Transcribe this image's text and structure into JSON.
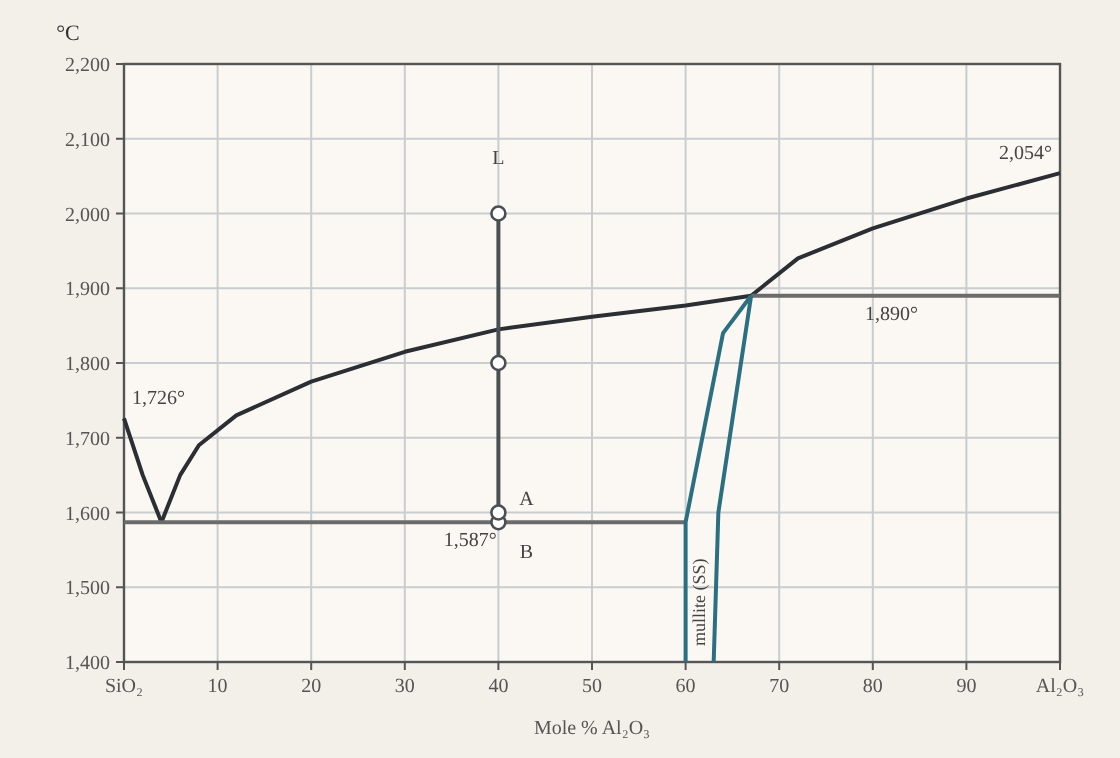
{
  "chart_data": {
    "type": "line",
    "xlabel": "Mole % Al₂O₃",
    "ylabel": "°C",
    "xlim": [
      0,
      100
    ],
    "ylim": [
      1400,
      2200
    ],
    "xticks": [
      {
        "value": 0,
        "label": "SiO₂"
      },
      10,
      20,
      30,
      40,
      50,
      60,
      70,
      80,
      90,
      {
        "value": 100,
        "label": "Al₂O₃"
      }
    ],
    "yticks": [
      {
        "value": 1400,
        "label": "1,400"
      },
      {
        "value": 1500,
        "label": "1,500"
      },
      {
        "value": 1600,
        "label": "1,600"
      },
      {
        "value": 1700,
        "label": "1,700"
      },
      {
        "value": 1800,
        "label": "1,800"
      },
      {
        "value": 1900,
        "label": "1,900"
      },
      {
        "value": 2000,
        "label": "2,000"
      },
      {
        "value": 2100,
        "label": "2,100"
      },
      {
        "value": 2200,
        "label": "2,200"
      }
    ],
    "grid": true,
    "series": [
      {
        "color": "#2b2f33",
        "x": [
          0,
          2,
          4
        ],
        "values": [
          1726,
          1650,
          1587
        ]
      },
      {
        "color": "#2b2f33",
        "x": [
          4,
          6,
          8,
          12,
          20,
          30,
          40,
          50,
          60,
          67
        ],
        "values": [
          1587,
          1650,
          1690,
          1730,
          1775,
          1815,
          1845,
          1862,
          1877,
          1890
        ]
      },
      {
        "color": "#2b2f33",
        "x": [
          67,
          72,
          80,
          90,
          100
        ],
        "values": [
          1890,
          1940,
          1980,
          2020,
          2054
        ]
      },
      {
        "color": "#6b6b6b",
        "x": [
          67,
          100
        ],
        "values": [
          1890,
          1890
        ]
      },
      {
        "color": "#6b6b6b",
        "x": [
          0,
          60
        ],
        "values": [
          1587,
          1587
        ]
      },
      {
        "color": "#2b6f80",
        "x": [
          60,
          60,
          64,
          67
        ],
        "values": [
          1400,
          1587,
          1840,
          1890
        ]
      },
      {
        "color": "#2b6f80",
        "x": [
          63,
          63.5,
          67
        ],
        "values": [
          1400,
          1600,
          1890
        ]
      },
      {
        "color": "#4a4f55",
        "marker": "circle",
        "x": [
          40,
          40,
          40,
          40
        ],
        "values": [
          1587,
          1600,
          1800,
          2000
        ]
      }
    ],
    "annotations": [
      "L",
      "A",
      "B",
      {
        "text": "1,587°",
        "x": 37,
        "y": 1587
      },
      {
        "text": "1,726°",
        "x": 0,
        "y": 1726
      },
      {
        "text": "1,890°",
        "x": 82,
        "y": 1890
      },
      {
        "text": "2,054°",
        "x": 100,
        "y": 2054
      },
      "mullite (SS)"
    ]
  }
}
